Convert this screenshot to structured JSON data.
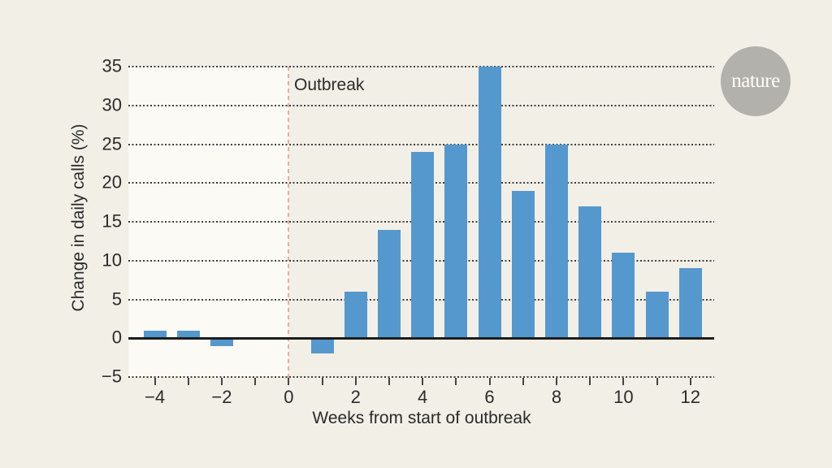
{
  "colors": {
    "page-bg": "#f1efe6",
    "plot-pre-bg": "#fbfaf5",
    "bar": "#5598cd",
    "axis-line": "#1d1d1d",
    "grid-dot": "#3f3f3f",
    "tick": "#444444",
    "text": "#2b2b2b",
    "outbreak-line": "#e8aea2",
    "logo-bg": "#b3b1ac",
    "logo-text": "#fffdf6"
  },
  "branding": {
    "logo_text": "nature"
  },
  "chart_data": {
    "type": "bar",
    "title": "",
    "xlabel": "Weeks from start of outbreak",
    "ylabel": "Change in daily calls (%)",
    "x": [
      -4,
      -3,
      -2,
      -1,
      0,
      1,
      2,
      3,
      4,
      5,
      6,
      7,
      8,
      9,
      10,
      11,
      12
    ],
    "values": [
      1,
      1,
      -1,
      0,
      0,
      -2,
      6,
      14,
      24,
      25,
      35,
      19,
      25,
      17,
      11,
      6,
      9
    ],
    "xlim": [
      -4.79,
      12.71
    ],
    "ylim": [
      -5,
      35
    ],
    "y_ticks": [
      35,
      30,
      25,
      20,
      15,
      10,
      5,
      0,
      -5
    ],
    "x_tick_step": 1,
    "x_label_every": 2,
    "grid": "dotted-horizontal",
    "legend": "none",
    "annotation": {
      "text": "Outbreak",
      "x": 0
    }
  }
}
